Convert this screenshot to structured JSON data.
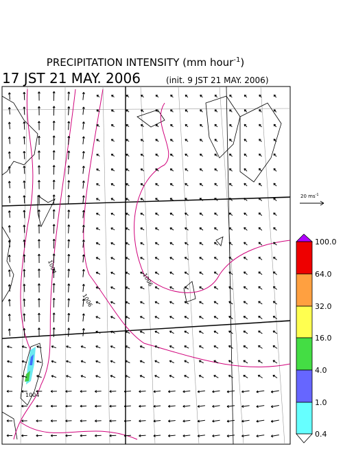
{
  "header": {
    "title": {
      "text": "PRECIPITATION INTENSITY (mm hour",
      "superscript": "-1",
      "suffix": ")"
    },
    "valid_time": "17 JST 21 MAY. 2006",
    "init_time": "(init. 9 JST 21 MAY. 2006)"
  },
  "vector_scale": {
    "text": "20 ms",
    "superscript": "-1"
  },
  "isobar_labels": [
    "1004",
    "1006",
    "1006",
    "1004"
  ],
  "colorbar": {
    "labels": [
      "100.0",
      "64.0",
      "32.0",
      "16.0",
      "4.0",
      "1.0",
      "0.4"
    ]
  }
}
